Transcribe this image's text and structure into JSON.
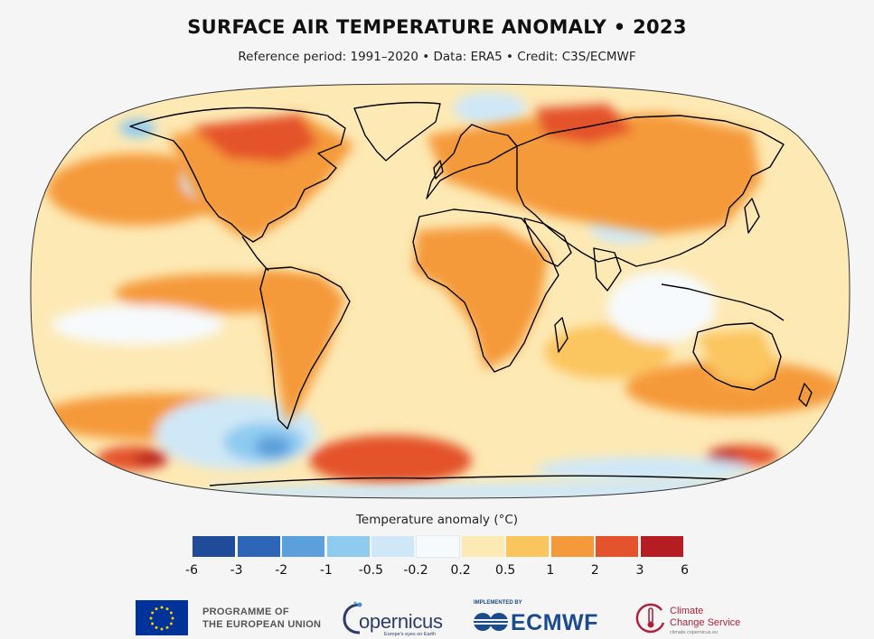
{
  "header": {
    "title": "SURFACE AIR TEMPERATURE ANOMALY • 2023",
    "subtitle": "Reference period: 1991–2020 • Data: ERA5 • Credit: C3S/ECMWF"
  },
  "legend": {
    "title": "Temperature anomaly (°C)",
    "bins": [
      {
        "color": "#1f4b99"
      },
      {
        "color": "#2d66b8"
      },
      {
        "color": "#5b9fdb"
      },
      {
        "color": "#8fcaf0"
      },
      {
        "color": "#cfe8f7"
      },
      {
        "color": "#f7fafc"
      },
      {
        "color": "#fde9b4"
      },
      {
        "color": "#fbc55e"
      },
      {
        "color": "#f59a3a"
      },
      {
        "color": "#e4532b"
      },
      {
        "color": "#b61d22"
      }
    ],
    "ticks": [
      "-6",
      "-3",
      "-2",
      "-1",
      "-0.5",
      "-0.2",
      "0.2",
      "0.5",
      "1",
      "2",
      "3",
      "6"
    ]
  },
  "footer": {
    "eu_line1": "PROGRAMME OF",
    "eu_line2": "THE EUROPEAN UNION",
    "copernicus": "opernicus",
    "copernicus_tagline": "Europe's eyes on Earth",
    "implemented_by": "IMPLEMENTED BY",
    "ecmwf": "ECMWF",
    "c3s_line1": "Climate",
    "c3s_line2": "Change Service",
    "c3s_url": "climate.copernicus.eu"
  },
  "map": {
    "projection": "robinson",
    "colors": {
      "ocean_base": "#fde9b4",
      "land_base": "#f59a3a",
      "warm_strong": "#e4532b",
      "warm_extreme": "#b61d22",
      "cool_light": "#cfe8f7",
      "cool_mid": "#8fcaf0",
      "cool_strong": "#5b9fdb",
      "coastline": "#000000"
    }
  }
}
